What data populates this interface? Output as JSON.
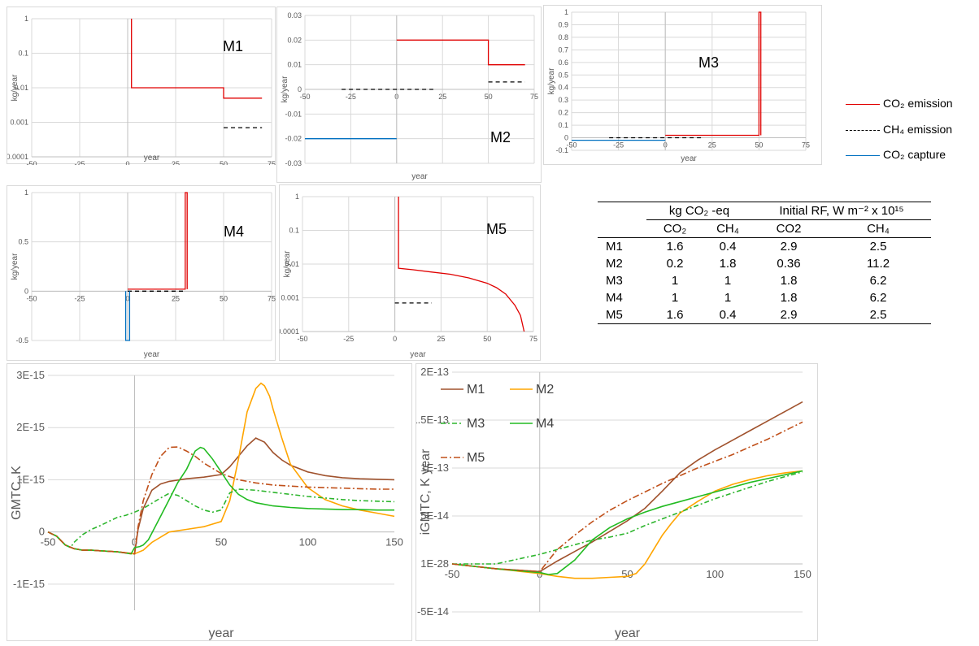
{
  "legend": {
    "items": [
      {
        "label": "CO₂ emission",
        "color": "#e00000",
        "style": "solid"
      },
      {
        "label": "CH₄ emission",
        "color": "#000000",
        "style": "dashed"
      },
      {
        "label": "CO₂ capture",
        "color": "#0070c0",
        "style": "solid"
      }
    ]
  },
  "table": {
    "group_headers": [
      "kg CO₂ -eq",
      "Initial RF, W m⁻² x 10¹⁵"
    ],
    "sub_headers": [
      "CO₂",
      "CH₄",
      "CO2",
      "CH₄"
    ],
    "rows": [
      {
        "label": "M1",
        "cells": [
          "1.6",
          "0.4",
          "2.9",
          "2.5"
        ]
      },
      {
        "label": "M2",
        "cells": [
          "0.2",
          "1.8",
          "0.36",
          "11.2"
        ]
      },
      {
        "label": "M3",
        "cells": [
          "1",
          "1",
          "1.8",
          "6.2"
        ]
      },
      {
        "label": "M4",
        "cells": [
          "1",
          "1",
          "1.8",
          "6.2"
        ]
      },
      {
        "label": "M5",
        "cells": [
          "1.6",
          "0.4",
          "2.9",
          "2.5"
        ]
      }
    ]
  },
  "chart_data": [
    {
      "type": "line",
      "title": "M1",
      "xlabel": "year",
      "ylabel": "kg/year",
      "xlim": [
        -50,
        75
      ],
      "ylim": [
        0.0001,
        1
      ],
      "yscale": "log",
      "xticks": [
        "-50",
        "-25",
        "0",
        "25",
        "50",
        "75"
      ],
      "yticks": [
        "0.0001",
        "0.001",
        "0.01",
        "0.1",
        "1"
      ],
      "series": [
        {
          "kind": "co2",
          "x": [
            2,
            2,
            50,
            50,
            70
          ],
          "y": [
            1,
            0.01,
            0.01,
            0.005,
            0.005
          ]
        },
        {
          "kind": "ch4",
          "x": [
            50,
            70
          ],
          "y": [
            0.0007,
            0.0007
          ]
        }
      ]
    },
    {
      "type": "line",
      "title": "M2",
      "xlabel": "year",
      "ylabel": "kg/year",
      "xlim": [
        -50,
        75
      ],
      "ylim": [
        -0.03,
        0.03
      ],
      "xticks": [
        "-50",
        "-25",
        "0",
        "25",
        "50",
        "75"
      ],
      "yticks": [
        "-0.03",
        "-0.02",
        "-0.01",
        "0",
        "0.01",
        "0.02",
        "0.03"
      ],
      "series": [
        {
          "kind": "co2",
          "x": [
            0,
            50,
            50,
            70
          ],
          "y": [
            0.02,
            0.02,
            0.01,
            0.01
          ]
        },
        {
          "kind": "ch4",
          "x": [
            -30,
            20
          ],
          "y": [
            0,
            0
          ]
        },
        {
          "kind": "ch4",
          "x": [
            50,
            70
          ],
          "y": [
            0.003,
            0.003
          ]
        },
        {
          "kind": "capture",
          "x": [
            -50,
            0
          ],
          "y": [
            -0.02,
            -0.02
          ]
        }
      ]
    },
    {
      "type": "line",
      "title": "M3",
      "xlabel": "year",
      "ylabel": "kg/year",
      "xlim": [
        -50,
        75
      ],
      "ylim": [
        -0.1,
        1
      ],
      "xticks": [
        "-50",
        "-25",
        "0",
        "25",
        "50",
        "75"
      ],
      "yticks": [
        "-0.1",
        "0",
        "0.1",
        "0.2",
        "0.3",
        "0.4",
        "0.5",
        "0.6",
        "0.7",
        "0.8",
        "0.9",
        "1"
      ],
      "series": [
        {
          "kind": "co2",
          "x": [
            0,
            50,
            50,
            51,
            51
          ],
          "y": [
            0.02,
            0.02,
            1,
            1,
            0.02
          ]
        },
        {
          "kind": "ch4",
          "x": [
            -30,
            20
          ],
          "y": [
            0,
            0
          ]
        },
        {
          "kind": "capture",
          "x": [
            -50,
            0
          ],
          "y": [
            -0.02,
            -0.02
          ]
        }
      ]
    },
    {
      "type": "line",
      "title": "M4",
      "xlabel": "year",
      "ylabel": "kg/year",
      "xlim": [
        -50,
        75
      ],
      "ylim": [
        -0.5,
        1
      ],
      "xticks": [
        "-50",
        "-25",
        "0",
        "25",
        "50",
        "75"
      ],
      "yticks": [
        "-0.5",
        "0",
        "0.5",
        "1"
      ],
      "series": [
        {
          "kind": "co2",
          "x": [
            0,
            30,
            30,
            31,
            31
          ],
          "y": [
            0.02,
            0.02,
            1,
            1,
            0.02
          ]
        },
        {
          "kind": "ch4",
          "x": [
            0,
            30
          ],
          "y": [
            0,
            0
          ]
        },
        {
          "kind": "capture",
          "x": [
            -1,
            -1,
            1,
            1
          ],
          "y": [
            0,
            -0.5,
            -0.5,
            0
          ]
        }
      ]
    },
    {
      "type": "line",
      "title": "M5",
      "xlabel": "year",
      "ylabel": "kg/year",
      "xlim": [
        -50,
        75
      ],
      "ylim": [
        0.0001,
        1
      ],
      "yscale": "log",
      "xticks": [
        "-50",
        "-25",
        "0",
        "25",
        "50",
        "75"
      ],
      "yticks": [
        "0.0001",
        "0.001",
        "0.01",
        "0.1",
        "1"
      ],
      "series": [
        {
          "kind": "co2",
          "x": [
            2,
            2,
            10,
            20,
            30,
            40,
            50,
            55,
            60,
            65,
            68,
            70
          ],
          "y": [
            1,
            0.0075,
            0.0068,
            0.0058,
            0.005,
            0.0039,
            0.0027,
            0.002,
            0.0013,
            0.0006,
            0.0003,
            0.0001
          ]
        },
        {
          "kind": "ch4",
          "x": [
            0,
            20
          ],
          "y": [
            0.0007,
            0.0007
          ]
        }
      ]
    },
    {
      "type": "line",
      "xlabel": "year",
      "ylabel": "GMTC, K",
      "xlim": [
        -50,
        150
      ],
      "ylim": [
        -1.5e-15,
        3e-15
      ],
      "xticks": [
        "-50",
        "0",
        "50",
        "100",
        "150"
      ],
      "yticks": [
        "-1E-15",
        "0",
        "1E-15",
        "2E-15",
        "3E-15"
      ],
      "series": [
        {
          "name": "M1",
          "color": "#a0522d",
          "dash": "",
          "x": [
            -50,
            -45,
            -40,
            -35,
            -30,
            -25,
            -20,
            -10,
            0,
            2,
            5,
            10,
            15,
            20,
            30,
            40,
            50,
            55,
            60,
            65,
            70,
            75,
            80,
            85,
            90,
            100,
            110,
            120,
            130,
            140,
            150
          ],
          "y": [
            0,
            -8e-17,
            -2.5e-16,
            -3.2e-16,
            -3.5e-16,
            -3.5e-16,
            -3.6e-16,
            -3.8e-16,
            -4.2e-16,
            5e-17,
            4.5e-16,
            8e-16,
            9.2e-16,
            9.7e-16,
            1.02e-15,
            1.05e-15,
            1.1e-15,
            1.25e-15,
            1.45e-15,
            1.65e-15,
            1.8e-15,
            1.72e-15,
            1.52e-15,
            1.38e-15,
            1.28e-15,
            1.15e-15,
            1.08e-15,
            1.04e-15,
            1.02e-15,
            1.01e-15,
            1e-15
          ]
        },
        {
          "name": "M2",
          "color": "#ffa500",
          "dash": "",
          "x": [
            -50,
            -45,
            -40,
            -35,
            -30,
            -25,
            -20,
            -10,
            0,
            5,
            10,
            20,
            30,
            40,
            50,
            55,
            60,
            65,
            70,
            73,
            75,
            78,
            80,
            85,
            90,
            100,
            110,
            120,
            130,
            140,
            150
          ],
          "y": [
            0,
            -8e-17,
            -2.5e-16,
            -3.2e-16,
            -3.5e-16,
            -3.5e-16,
            -3.6e-16,
            -3.8e-16,
            -4.2e-16,
            -3.5e-16,
            -2e-16,
            0,
            5e-17,
            1e-16,
            2e-16,
            6e-16,
            1.4e-15,
            2.3e-15,
            2.75e-15,
            2.85e-15,
            2.8e-15,
            2.6e-15,
            2.35e-15,
            1.8e-15,
            1.3e-15,
            8.5e-16,
            6.2e-16,
            5e-16,
            4.2e-16,
            3.6e-16,
            3e-16
          ]
        },
        {
          "name": "M3",
          "color": "#2db52d",
          "dash": "6,3,2,3",
          "x": [
            -50,
            -45,
            -40,
            -37,
            -35,
            -30,
            -25,
            -20,
            -15,
            -10,
            -5,
            0,
            5,
            10,
            15,
            20,
            25,
            30,
            35,
            40,
            45,
            50,
            55,
            60,
            70,
            80,
            90,
            100,
            110,
            120,
            130,
            140,
            150
          ],
          "y": [
            0,
            -8e-17,
            -2.5e-16,
            -3e-16,
            -2e-16,
            -5e-17,
            5e-17,
            1.2e-16,
            2e-16,
            2.8e-16,
            3.2e-16,
            3.8e-16,
            4.5e-16,
            5.5e-16,
            6.5e-16,
            7.4e-16,
            7e-16,
            6e-16,
            5e-16,
            4.2e-16,
            3.8e-16,
            4.2e-16,
            7.5e-16,
            8.2e-16,
            8e-16,
            7.6e-16,
            7.2e-16,
            6.8e-16,
            6.5e-16,
            6.2e-16,
            6e-16,
            5.9e-16,
            5.8e-16
          ]
        },
        {
          "name": "M4",
          "color": "#22bb22",
          "dash": "",
          "x": [
            -50,
            -45,
            -40,
            -35,
            -30,
            -25,
            -20,
            -10,
            -2,
            0,
            3,
            5,
            8,
            10,
            15,
            20,
            25,
            30,
            35,
            38,
            40,
            45,
            50,
            55,
            60,
            65,
            70,
            80,
            90,
            100,
            110,
            120,
            130,
            140,
            150
          ],
          "y": [
            0,
            -8e-17,
            -2.5e-16,
            -3.2e-16,
            -3.5e-16,
            -3.5e-16,
            -3.6e-16,
            -3.8e-16,
            -4.2e-16,
            -3e-16,
            -2.8e-16,
            -2.5e-16,
            -1.5e-16,
            -2e-17,
            3e-16,
            6.2e-16,
            9.5e-16,
            1.2e-15,
            1.55e-15,
            1.62e-15,
            1.6e-15,
            1.4e-15,
            1.15e-15,
            9e-16,
            7.2e-16,
            6.2e-16,
            5.6e-16,
            5e-16,
            4.7e-16,
            4.5e-16,
            4.4e-16,
            4.3e-16,
            4.3e-16,
            4.2e-16,
            4.2e-16
          ]
        },
        {
          "name": "M5",
          "color": "#c0501a",
          "dash": "8,3,2,3",
          "x": [
            -50,
            -45,
            -40,
            -35,
            -30,
            -25,
            -20,
            -10,
            0,
            2,
            5,
            10,
            15,
            20,
            25,
            30,
            35,
            40,
            50,
            60,
            70,
            80,
            90,
            100,
            110,
            120,
            130,
            140,
            150
          ],
          "y": [
            0,
            -8e-17,
            -2.5e-16,
            -3.2e-16,
            -3.5e-16,
            -3.5e-16,
            -3.6e-16,
            -3.8e-16,
            -4.2e-16,
            1e-16,
            6e-16,
            1.1e-15,
            1.45e-15,
            1.62e-15,
            1.63e-15,
            1.55e-15,
            1.45e-15,
            1.32e-15,
            1.12e-15,
            1e-15,
            9.4e-16,
            9e-16,
            8.8e-16,
            8.6e-16,
            8.5e-16,
            8.4e-16,
            8.3e-16,
            8.2e-16,
            8.2e-16
          ]
        }
      ]
    },
    {
      "type": "line",
      "xlabel": "year",
      "ylabel": "iGMTC, K year",
      "xlim": [
        -50,
        150
      ],
      "ylim": [
        -5e-14,
        2e-13
      ],
      "xticks": [
        "-50",
        "0",
        "50",
        "100",
        "150"
      ],
      "yticks": [
        "-5E-14",
        "1E-28",
        "5E-14",
        "1E-13",
        "1.5E-13",
        "2E-13"
      ],
      "legend": [
        "M1",
        "M2",
        "M3",
        "M4",
        "M5"
      ],
      "series": [
        {
          "name": "M1",
          "color": "#a0522d",
          "dash": "",
          "x": [
            -50,
            -25,
            0,
            10,
            20,
            30,
            40,
            50,
            60,
            70,
            80,
            90,
            100,
            110,
            120,
            130,
            140,
            150
          ],
          "y": [
            0,
            -5e-15,
            -8e-15,
            3e-15,
            1.3e-14,
            2.3e-14,
            3.4e-14,
            4.5e-14,
            5.8e-14,
            7.6e-14,
            9.5e-14,
            1.08e-13,
            1.19e-13,
            1.29e-13,
            1.39e-13,
            1.49e-13,
            1.59e-13,
            1.69e-13
          ]
        },
        {
          "name": "M2",
          "color": "#ffa500",
          "dash": "",
          "x": [
            -50,
            -25,
            0,
            10,
            20,
            30,
            40,
            50,
            55,
            60,
            65,
            70,
            75,
            80,
            90,
            100,
            110,
            120,
            130,
            140,
            150
          ],
          "y": [
            0,
            -5e-15,
            -1e-14,
            -1.3e-14,
            -1.5e-14,
            -1.5e-14,
            -1.4e-14,
            -1.3e-14,
            -1e-14,
            0,
            1.5e-14,
            3e-14,
            4.2e-14,
            5.3e-14,
            6.5e-14,
            7.6e-14,
            8.3e-14,
            8.8e-14,
            9.2e-14,
            9.5e-14,
            9.7e-14
          ]
        },
        {
          "name": "M3",
          "color": "#2db52d",
          "dash": "6,3,2,3",
          "x": [
            -50,
            -25,
            0,
            10,
            20,
            30,
            40,
            50,
            60,
            70,
            80,
            90,
            100,
            110,
            120,
            130,
            140,
            150
          ],
          "y": [
            0,
            0,
            1e-14,
            1.5e-14,
            2e-14,
            2.5e-14,
            2.8e-14,
            3.2e-14,
            4e-14,
            4.7e-14,
            5.4e-14,
            6.1e-14,
            6.8e-14,
            7.4e-14,
            8e-14,
            8.6e-14,
            9.1e-14,
            9.6e-14
          ]
        },
        {
          "name": "M4",
          "color": "#22bb22",
          "dash": "",
          "x": [
            -50,
            -25,
            0,
            5,
            10,
            20,
            30,
            40,
            50,
            60,
            70,
            80,
            90,
            100,
            110,
            120,
            130,
            140,
            150
          ],
          "y": [
            0,
            -5e-15,
            -9e-15,
            -1.1e-14,
            -1e-14,
            4e-15,
            2.5e-14,
            3.8e-14,
            4.7e-14,
            5.4e-14,
            6e-14,
            6.5e-14,
            7e-14,
            7.5e-14,
            8e-14,
            8.5e-14,
            8.9e-14,
            9.3e-14,
            9.7e-14
          ]
        },
        {
          "name": "M5",
          "color": "#c0501a",
          "dash": "8,3,2,3",
          "x": [
            -50,
            -25,
            0,
            10,
            20,
            30,
            40,
            50,
            60,
            70,
            80,
            90,
            100,
            110,
            120,
            130,
            140,
            150
          ],
          "y": [
            0,
            -5e-15,
            -8e-15,
            1.5e-14,
            3e-14,
            4.4e-14,
            5.6e-14,
            6.6e-14,
            7.5e-14,
            8.4e-14,
            9.2e-14,
            1e-13,
            1.07e-13,
            1.14e-13,
            1.22e-13,
            1.3e-13,
            1.39e-13,
            1.48e-13
          ]
        }
      ]
    }
  ]
}
